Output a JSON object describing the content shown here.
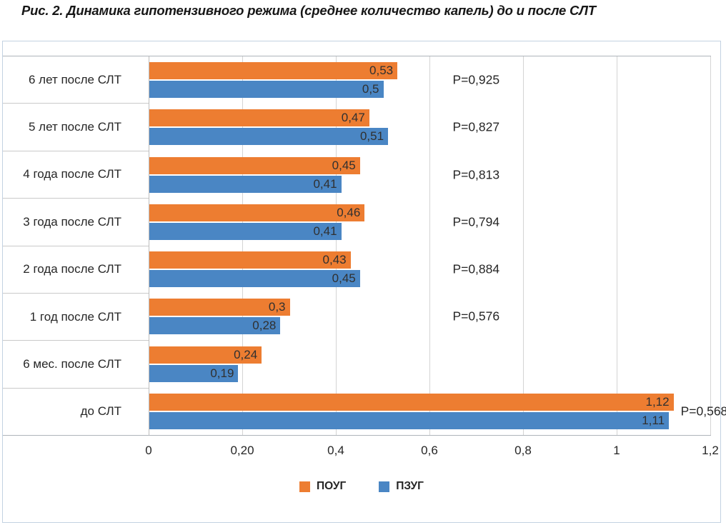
{
  "figure_title": "Рис. 2. Динамика гипотензивного режима (среднее количество капель) до и после СЛТ",
  "chart_data": {
    "type": "bar",
    "orientation": "horizontal",
    "title": "Рис. 2. Динамика гипотензивного режима (среднее количество капель) до и после СЛТ",
    "categories": [
      "6 лет после СЛТ",
      "5 лет после СЛТ",
      "4 года после СЛТ",
      "3 года после СЛТ",
      "2 года после СЛТ",
      "1 год после СЛТ",
      "6 мес. после СЛТ",
      "до СЛТ"
    ],
    "series": [
      {
        "name": "ПОУГ",
        "color": "#ED7D31",
        "values": [
          0.53,
          0.47,
          0.45,
          0.46,
          0.43,
          0.3,
          0.24,
          1.12
        ],
        "value_labels": [
          "0,53",
          "0,47",
          "0,45",
          "0,46",
          "0,43",
          "0,3",
          "0,24",
          "1,12"
        ]
      },
      {
        "name": "ПЗУГ",
        "color": "#4A86C4",
        "values": [
          0.5,
          0.51,
          0.41,
          0.41,
          0.45,
          0.28,
          0.19,
          1.11
        ],
        "value_labels": [
          "0,5",
          "0,51",
          "0,41",
          "0,41",
          "0,45",
          "0,28",
          "0,19",
          "1,11"
        ]
      }
    ],
    "p_values": [
      "P=0,925",
      "P=0,827",
      "P=0,813",
      "P=0,794",
      "P=0,884",
      "P=0,576",
      "",
      "P=0,568"
    ],
    "xlim": [
      0,
      1.2
    ],
    "x_ticks": [
      {
        "value": 0,
        "label": "0"
      },
      {
        "value": 0.2,
        "label": "0,20"
      },
      {
        "value": 0.4,
        "label": "0,4"
      },
      {
        "value": 0.6,
        "label": "0,6"
      },
      {
        "value": 0.8,
        "label": "0,8"
      },
      {
        "value": 1,
        "label": "1"
      },
      {
        "value": 1.2,
        "label": "1,2"
      }
    ],
    "grid": true,
    "legend_position": "bottom",
    "legend": [
      {
        "label": "ПОУГ",
        "color": "#ED7D31"
      },
      {
        "label": "ПЗУГ",
        "color": "#4A86C4"
      }
    ]
  }
}
